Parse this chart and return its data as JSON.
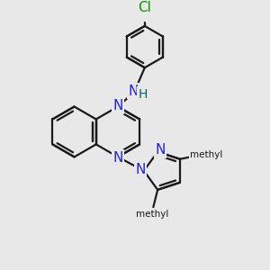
{
  "bg_color": "#e8e8e8",
  "bond_color": "#1a1a1a",
  "N_color": "#2020ee",
  "Cl_color": "#009900",
  "H_color": "#006666",
  "lw": 1.6,
  "figsize": [
    3.0,
    3.0
  ],
  "dpi": 100,
  "xlim": [
    0,
    300
  ],
  "ylim": [
    0,
    300
  ]
}
